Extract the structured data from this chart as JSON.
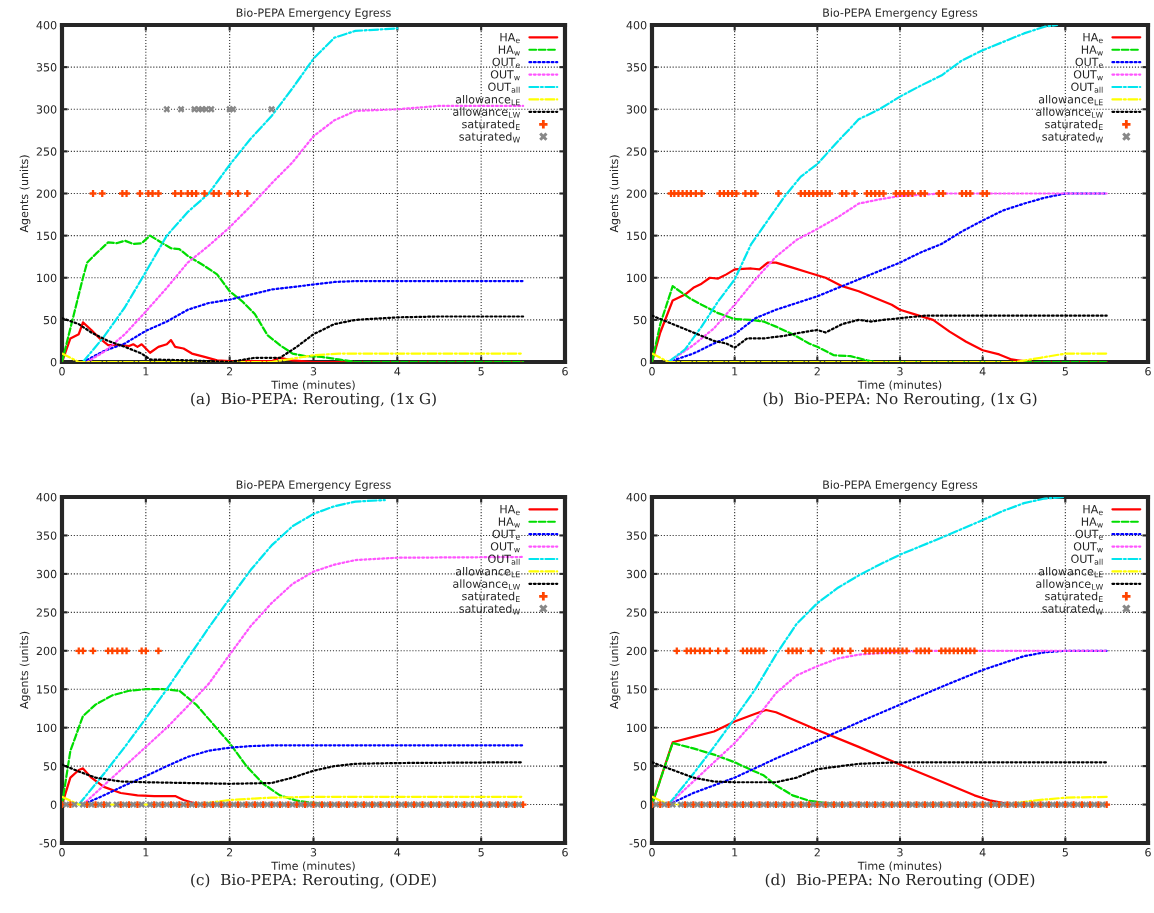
{
  "chart_data": [
    {
      "type": "line",
      "title": "Bio-PEPA Emergency Egress",
      "xlabel": "Time (minutes)",
      "ylabel": "Agents (units)",
      "xlim": [
        0,
        6
      ],
      "xticks": [
        0,
        1,
        2,
        3,
        4,
        5,
        6
      ],
      "ylim": [
        0,
        400
      ],
      "yticks": [
        0,
        50,
        100,
        150,
        200,
        250,
        300,
        350,
        400
      ],
      "grid": true,
      "legend": "top right",
      "annotations": [
        "(a)  Bio-PEPA: Rerouting, (1x G)"
      ],
      "series": [
        {
          "name": "HA$_{e}$",
          "color": "#ff0000",
          "line_style": "solid",
          "x": [
            0,
            0.1,
            0.2,
            0.25,
            0.35,
            0.45,
            0.55,
            0.7,
            0.8,
            0.85,
            0.9,
            0.95,
            1.05,
            1.15,
            1.25,
            1.3,
            1.35,
            1.45,
            1.55,
            1.7,
            1.85,
            2.0,
            2.5,
            2.6,
            2.75,
            3,
            5.5
          ],
          "values": [
            0,
            28,
            33,
            47,
            38,
            28,
            20,
            20,
            19,
            21,
            18,
            21,
            11,
            18,
            21,
            26,
            18,
            16,
            10,
            6,
            2,
            1,
            1,
            5,
            2,
            0,
            0
          ]
        },
        {
          "name": "HA$_{w}$",
          "color": "#00dd00",
          "line_style": "dashed",
          "x": [
            0,
            0.15,
            0.25,
            0.3,
            0.4,
            0.55,
            0.65,
            0.75,
            0.85,
            0.95,
            1.05,
            1.15,
            1.3,
            1.4,
            1.5,
            1.7,
            1.85,
            2.0,
            2.15,
            2.3,
            2.45,
            2.6,
            2.75,
            2.9,
            3.1,
            3.3,
            3.5,
            5.5
          ],
          "values": [
            0,
            60,
            100,
            118,
            128,
            142,
            141,
            144,
            140,
            141,
            150,
            144,
            135,
            134,
            126,
            114,
            104,
            84,
            72,
            57,
            32,
            20,
            10,
            7,
            6,
            3,
            0,
            0
          ]
        },
        {
          "name": "OUT$_{e}$",
          "color": "#0000ff",
          "line_style": "dotted",
          "x": [
            0.25,
            0.5,
            0.75,
            1.0,
            1.25,
            1.5,
            1.75,
            2.0,
            2.25,
            2.5,
            2.75,
            3.0,
            3.25,
            3.5,
            5.5
          ],
          "values": [
            0,
            13,
            22,
            37,
            48,
            62,
            70,
            74,
            80,
            86,
            89,
            92,
            95,
            96,
            96
          ]
        },
        {
          "name": "OUT$_{w}$",
          "color": "#ff55ff",
          "line_style": "dotted",
          "x": [
            0.3,
            0.5,
            0.75,
            1.0,
            1.25,
            1.5,
            1.75,
            2.0,
            2.25,
            2.5,
            2.75,
            3.0,
            3.25,
            3.5,
            4.0,
            4.5,
            5.5
          ],
          "values": [
            0,
            12,
            33,
            60,
            88,
            118,
            138,
            160,
            185,
            212,
            237,
            268,
            287,
            298,
            300,
            304,
            304
          ]
        },
        {
          "name": "OUT$_{all}$",
          "color": "#00e5ee",
          "line_style": "dashdot",
          "x": [
            0.25,
            0.5,
            0.75,
            1.0,
            1.25,
            1.5,
            1.75,
            2.0,
            2.25,
            2.5,
            2.75,
            3.0,
            3.25,
            3.5,
            4.0
          ],
          "values": [
            0,
            30,
            65,
            107,
            150,
            178,
            200,
            234,
            265,
            292,
            325,
            360,
            385,
            393,
            396
          ]
        },
        {
          "name": "allowance$_{LE}$",
          "color": "#ffff00",
          "line_style": "dashdot",
          "x": [
            0,
            0.2,
            2.5,
            3.0,
            3.3,
            5.5
          ],
          "values": [
            10,
            0,
            0,
            8,
            10,
            10
          ]
        },
        {
          "name": "allowance$_{LW}$",
          "color": "#000000",
          "line_style": "dotted",
          "x": [
            0,
            0.2,
            0.35,
            0.55,
            0.75,
            0.95,
            1.05,
            1.5,
            2.0,
            2.3,
            2.6,
            2.8,
            3.0,
            3.25,
            3.5,
            4.0,
            4.5,
            5.5
          ],
          "values": [
            52,
            45,
            35,
            25,
            18,
            10,
            3,
            2,
            0,
            5,
            5,
            18,
            33,
            45,
            50,
            53,
            54,
            54
          ]
        },
        {
          "name": "saturated$_{E}$",
          "type": "scatter",
          "marker": "plus",
          "color": "#ff4400",
          "x": [
            0.37,
            0.48,
            0.72,
            0.77,
            0.93,
            1.03,
            1.08,
            1.15,
            1.35,
            1.42,
            1.5,
            1.55,
            1.6,
            1.7,
            1.81,
            1.87,
            2.0,
            2.1,
            2.21
          ],
          "values": [
            200,
            200,
            200,
            200,
            200,
            200,
            200,
            200,
            200,
            200,
            200,
            200,
            200,
            200,
            200,
            200,
            200,
            200,
            200
          ]
        },
        {
          "name": "saturated$_{W}$",
          "type": "scatter",
          "marker": "cross",
          "color": "#888888",
          "x": [
            1.25,
            1.42,
            1.58,
            1.63,
            1.67,
            1.72,
            1.78,
            2.0,
            2.04,
            2.5
          ],
          "values": [
            300,
            300,
            300,
            300,
            300,
            300,
            300,
            300,
            300,
            300
          ]
        }
      ]
    },
    {
      "type": "line",
      "title": "Bio-PEPA Emergency Egress",
      "xlabel": "Time (minutes)",
      "ylabel": "Agents (units)",
      "xlim": [
        0,
        6
      ],
      "xticks": [
        0,
        1,
        2,
        3,
        4,
        5,
        6
      ],
      "ylim": [
        0,
        400
      ],
      "yticks": [
        0,
        50,
        100,
        150,
        200,
        250,
        300,
        350,
        400
      ],
      "grid": true,
      "legend": "top right",
      "annotations": [
        "(b)  Bio-PEPA: No Rerouting, (1x G)"
      ],
      "series": [
        {
          "name": "HA$_{e}$",
          "color": "#ff0000",
          "line_style": "solid",
          "x": [
            0,
            0.1,
            0.25,
            0.4,
            0.5,
            0.6,
            0.7,
            0.8,
            0.9,
            1.0,
            1.2,
            1.3,
            1.4,
            1.5,
            1.7,
            1.9,
            2.1,
            2.3,
            2.5,
            2.7,
            2.9,
            3.0,
            3.2,
            3.4,
            3.6,
            3.8,
            4.0,
            4.2,
            4.35,
            4.6,
            5.5
          ],
          "values": [
            0,
            35,
            73,
            80,
            88,
            93,
            100,
            99,
            104,
            110,
            111,
            110,
            118,
            118,
            112,
            106,
            100,
            90,
            84,
            76,
            68,
            62,
            56,
            50,
            36,
            24,
            14,
            9,
            3,
            0,
            0
          ]
        },
        {
          "name": "HA$_{w}$",
          "color": "#00dd00",
          "line_style": "dashed",
          "x": [
            0,
            0.1,
            0.25,
            0.45,
            0.6,
            0.8,
            1.0,
            1.2,
            1.35,
            1.5,
            1.7,
            1.9,
            2.0,
            2.2,
            2.4,
            2.6,
            2.7,
            5.5
          ],
          "values": [
            0,
            45,
            90,
            76,
            68,
            58,
            51,
            50,
            48,
            42,
            33,
            22,
            18,
            8,
            7,
            2,
            0,
            0
          ]
        },
        {
          "name": "OUT$_{e}$",
          "color": "#0000ff",
          "line_style": "dotted",
          "x": [
            0.2,
            0.5,
            0.75,
            1.0,
            1.25,
            1.5,
            1.75,
            2.0,
            2.25,
            2.5,
            2.75,
            3.0,
            3.25,
            3.5,
            3.75,
            4.0,
            4.25,
            4.5,
            4.75,
            5.0,
            5.5
          ],
          "values": [
            0,
            10,
            22,
            33,
            52,
            62,
            70,
            78,
            88,
            98,
            108,
            118,
            130,
            140,
            155,
            168,
            180,
            188,
            195,
            200,
            200
          ]
        },
        {
          "name": "OUT$_{w}$",
          "color": "#ff55ff",
          "line_style": "dotted",
          "x": [
            0.2,
            0.5,
            0.75,
            1.0,
            1.25,
            1.5,
            1.75,
            2.0,
            2.25,
            2.5,
            2.75,
            3.0,
            3.5,
            5.5
          ],
          "values": [
            0,
            20,
            40,
            68,
            98,
            125,
            145,
            158,
            172,
            188,
            193,
            197,
            200,
            200
          ]
        },
        {
          "name": "OUT$_{all}$",
          "color": "#00e5ee",
          "line_style": "dashdot",
          "x": [
            0.2,
            0.4,
            0.6,
            0.8,
            1.0,
            1.2,
            1.4,
            1.6,
            1.8,
            2.0,
            2.25,
            2.5,
            2.75,
            3.0,
            3.25,
            3.5,
            3.75,
            4.0,
            4.25,
            4.5,
            4.75,
            4.9
          ],
          "values": [
            0,
            15,
            42,
            72,
            98,
            140,
            168,
            196,
            220,
            235,
            262,
            288,
            300,
            315,
            328,
            340,
            358,
            370,
            380,
            390,
            398,
            400
          ]
        },
        {
          "name": "allowance$_{LE}$",
          "color": "#ffff00",
          "line_style": "dashdot",
          "x": [
            0,
            0.2,
            4.4,
            4.7,
            5.0,
            5.5
          ],
          "values": [
            10,
            0,
            0,
            5,
            10,
            10
          ]
        },
        {
          "name": "allowance$_{LW}$",
          "color": "#000000",
          "line_style": "dotted",
          "x": [
            0,
            0.25,
            0.5,
            0.75,
            0.9,
            1.0,
            1.15,
            1.35,
            1.6,
            1.8,
            2.0,
            2.1,
            2.3,
            2.5,
            2.65,
            2.8,
            3.0,
            3.3,
            5.5
          ],
          "values": [
            55,
            45,
            35,
            25,
            22,
            17,
            28,
            28,
            31,
            35,
            38,
            35,
            45,
            50,
            48,
            50,
            52,
            55,
            55
          ]
        },
        {
          "name": "saturated$_{E}$",
          "type": "scatter",
          "marker": "plus",
          "color": "#ff4400",
          "x": [
            0.23,
            0.27,
            0.32,
            0.37,
            0.42,
            0.47,
            0.53,
            0.6,
            0.82,
            0.87,
            0.92,
            0.97,
            1.02,
            1.13,
            1.2,
            1.25,
            1.53,
            1.8,
            1.85,
            1.9,
            1.95,
            2.0,
            2.05,
            2.1,
            2.15,
            2.3,
            2.35,
            2.45,
            2.6,
            2.65,
            2.7,
            2.75,
            2.8,
            2.95,
            3.0,
            3.05,
            3.1,
            3.15,
            3.25,
            3.3,
            3.47,
            3.52,
            3.75,
            3.8,
            3.85,
            4.0,
            4.05
          ],
          "values": [
            200,
            200,
            200,
            200,
            200,
            200,
            200,
            200,
            200,
            200,
            200,
            200,
            200,
            200,
            200,
            200,
            200,
            200,
            200,
            200,
            200,
            200,
            200,
            200,
            200,
            200,
            200,
            200,
            200,
            200,
            200,
            200,
            200,
            200,
            200,
            200,
            200,
            200,
            200,
            200,
            200,
            200,
            200,
            200,
            200,
            200,
            200
          ]
        },
        {
          "name": "saturated$_{W}$",
          "type": "scatter",
          "marker": "cross",
          "color": "#888888"
        }
      ]
    },
    {
      "type": "line",
      "title": "Bio-PEPA Emergency Egress",
      "xlabel": "Time (minutes)",
      "ylabel": "Agents (units)",
      "xlim": [
        0,
        6
      ],
      "xticks": [
        0,
        1,
        2,
        3,
        4,
        5,
        6
      ],
      "ylim": [
        -50,
        400
      ],
      "yticks": [
        -50,
        0,
        50,
        100,
        150,
        200,
        250,
        300,
        350,
        400
      ],
      "grid": true,
      "legend": "top right",
      "annotations": [
        "(c)  Bio-PEPA: Rerouting, (ODE)"
      ],
      "series": [
        {
          "name": "HA$_{e}$",
          "color": "#ff0000",
          "line_style": "solid",
          "x": [
            0,
            0.1,
            0.2,
            0.25,
            0.35,
            0.5,
            0.7,
            0.9,
            1.1,
            1.35,
            1.45,
            1.6,
            1.8,
            5.5
          ],
          "values": [
            0,
            35,
            45,
            47,
            35,
            23,
            15,
            12,
            11,
            11,
            6,
            1,
            0,
            0
          ]
        },
        {
          "name": "HA$_{w}$",
          "color": "#00dd00",
          "line_style": "dashed",
          "x": [
            0,
            0.1,
            0.25,
            0.4,
            0.6,
            0.8,
            1.0,
            1.2,
            1.4,
            1.6,
            1.8,
            2.0,
            2.2,
            2.4,
            2.6,
            2.8,
            3.0,
            3.2,
            5.5
          ],
          "values": [
            0,
            70,
            115,
            130,
            142,
            148,
            150,
            150,
            148,
            130,
            105,
            80,
            50,
            27,
            12,
            5,
            2,
            0,
            0
          ]
        },
        {
          "name": "OUT$_{e}$",
          "color": "#0000ff",
          "line_style": "dotted",
          "x": [
            0.25,
            0.5,
            0.75,
            1.0,
            1.25,
            1.5,
            1.75,
            2.0,
            2.25,
            2.5,
            3.0,
            5.5
          ],
          "values": [
            0,
            12,
            25,
            37,
            50,
            62,
            70,
            74,
            76,
            77,
            77,
            77
          ]
        },
        {
          "name": "OUT$_{w}$",
          "color": "#ff55ff",
          "line_style": "dotted",
          "x": [
            0.25,
            0.5,
            0.75,
            1.0,
            1.25,
            1.5,
            1.75,
            2.0,
            2.25,
            2.5,
            2.75,
            3.0,
            3.25,
            3.5,
            4.0,
            5.5
          ],
          "values": [
            0,
            25,
            50,
            75,
            100,
            128,
            157,
            195,
            232,
            262,
            287,
            303,
            312,
            318,
            321,
            322
          ]
        },
        {
          "name": "OUT$_{all}$",
          "color": "#00e5ee",
          "line_style": "dashdot",
          "x": [
            0.2,
            0.5,
            0.75,
            1.0,
            1.25,
            1.5,
            1.75,
            2.0,
            2.25,
            2.5,
            2.75,
            3.0,
            3.25,
            3.5,
            3.85
          ],
          "values": [
            0,
            40,
            75,
            112,
            150,
            190,
            230,
            268,
            305,
            337,
            362,
            378,
            388,
            394,
            396
          ]
        },
        {
          "name": "allowance$_{LE}$",
          "color": "#ffff00",
          "line_style": "dashdot",
          "x": [
            0,
            0.2,
            1.6,
            2.0,
            2.5,
            3.0,
            5.5
          ],
          "values": [
            10,
            0,
            0,
            6,
            9,
            10,
            10
          ]
        },
        {
          "name": "allowance$_{LW}$",
          "color": "#000000",
          "line_style": "dotted",
          "x": [
            0,
            0.2,
            0.4,
            0.7,
            1.0,
            1.5,
            2.0,
            2.5,
            2.75,
            3.0,
            3.25,
            3.5,
            4.0,
            5.5
          ],
          "values": [
            52,
            43,
            35,
            30,
            29,
            28,
            27,
            28,
            35,
            44,
            50,
            53,
            54,
            55
          ]
        },
        {
          "name": "saturated$_{E}$",
          "type": "scatter",
          "marker": "plus",
          "color": "#ff4400",
          "x": [
            0.2,
            0.25,
            0.37,
            0.55,
            0.6,
            0.66,
            0.72,
            0.77,
            0.95,
            1.0,
            1.15,
            0,
            0.1,
            0.3,
            0.4,
            0.5,
            0.7,
            0.8,
            0.9,
            1.1,
            1.2,
            1.3,
            1.4,
            1.5,
            1.6,
            1.7,
            1.8,
            1.9,
            2.0,
            2.1,
            2.2,
            2.3,
            2.4,
            2.5,
            2.6,
            2.7,
            2.8,
            2.9,
            3.0,
            3.1,
            3.2,
            3.3,
            3.4,
            3.5,
            3.6,
            3.7,
            3.8,
            3.9,
            4.0,
            4.1,
            4.2,
            4.3,
            4.4,
            4.5,
            4.6,
            4.7,
            4.8,
            4.9,
            5.0,
            5.1,
            5.2,
            5.3,
            5.4,
            5.5
          ],
          "values": [
            200,
            200,
            200,
            200,
            200,
            200,
            200,
            200,
            200,
            200,
            200,
            0,
            0,
            0,
            0,
            0,
            0,
            0,
            0,
            0,
            0,
            0,
            0,
            0,
            0,
            0,
            0,
            0,
            0,
            0,
            0,
            0,
            0,
            0,
            0,
            0,
            0,
            0,
            0,
            0,
            0,
            0,
            0,
            0,
            0,
            0,
            0,
            0,
            0,
            0,
            0,
            0,
            0,
            0,
            0,
            0,
            0,
            0,
            0,
            0,
            0,
            0,
            0,
            0
          ]
        },
        {
          "name": "saturated$_{W}$",
          "type": "scatter",
          "marker": "cross",
          "color": "#888888",
          "x": [
            0.05,
            0.15,
            0.25,
            0.35,
            0.45,
            0.55,
            0.65,
            0.75,
            0.85,
            0.95,
            1.05,
            1.15,
            1.25,
            1.35,
            1.45,
            1.55,
            1.65,
            1.75,
            1.85,
            1.95,
            2.05,
            2.15,
            2.25,
            2.35,
            2.45,
            2.55,
            2.65,
            2.75,
            2.85,
            2.95,
            3.05,
            3.15,
            3.25,
            3.35,
            3.45,
            3.55,
            3.65,
            3.75,
            3.85,
            3.95,
            4.05,
            4.15,
            4.25,
            4.35,
            4.45,
            4.55,
            4.65,
            4.75,
            4.85,
            4.95,
            5.05,
            5.15,
            5.25,
            5.35,
            5.45
          ],
          "values": [
            0,
            0,
            0,
            0,
            0,
            0,
            0,
            0,
            0,
            0,
            0,
            0,
            0,
            0,
            0,
            0,
            0,
            0,
            0,
            0,
            0,
            0,
            0,
            0,
            0,
            0,
            0,
            0,
            0,
            0,
            0,
            0,
            0,
            0,
            0,
            0,
            0,
            0,
            0,
            0,
            0,
            0,
            0,
            0,
            0,
            0,
            0,
            0,
            0,
            0,
            0,
            0,
            0,
            0,
            0
          ]
        }
      ]
    },
    {
      "type": "line",
      "title": "Bio-PEPA Emergency Egress",
      "xlabel": "Time (minutes)",
      "ylabel": "Agents (units)",
      "xlim": [
        0,
        6
      ],
      "xticks": [
        0,
        1,
        2,
        3,
        4,
        5,
        6
      ],
      "ylim": [
        -50,
        400
      ],
      "yticks": [
        -50,
        0,
        50,
        100,
        150,
        200,
        250,
        300,
        350,
        400
      ],
      "grid": true,
      "legend": "top right",
      "annotations": [
        "(d)  Bio-PEPA: No Rerouting (ODE)"
      ],
      "series": [
        {
          "name": "HA$_{e}$",
          "color": "#ff0000",
          "line_style": "solid",
          "x": [
            0,
            0.25,
            0.5,
            0.75,
            1.0,
            1.25,
            1.38,
            1.5,
            2.0,
            2.5,
            3.0,
            3.5,
            3.9,
            4.1,
            4.3,
            4.5,
            5.5
          ],
          "values": [
            0,
            81,
            88,
            95,
            108,
            118,
            123,
            120,
            97,
            75,
            52,
            30,
            12,
            5,
            1,
            0,
            0
          ]
        },
        {
          "name": "HA$_{w}$",
          "color": "#00dd00",
          "line_style": "dashed",
          "x": [
            0,
            0.25,
            0.5,
            0.75,
            1.0,
            1.2,
            1.35,
            1.5,
            1.7,
            1.9,
            2.1,
            2.3,
            5.5
          ],
          "values": [
            0,
            80,
            73,
            65,
            55,
            45,
            38,
            25,
            12,
            5,
            2,
            0,
            0
          ]
        },
        {
          "name": "OUT$_{e}$",
          "color": "#0000ff",
          "line_style": "dotted",
          "x": [
            0.2,
            0.5,
            1.0,
            1.5,
            2.0,
            2.5,
            3.0,
            3.5,
            4.0,
            4.5,
            4.75,
            5.0,
            5.5
          ],
          "values": [
            0,
            15,
            35,
            60,
            83,
            107,
            130,
            153,
            175,
            193,
            198,
            200,
            200
          ]
        },
        {
          "name": "OUT$_{w}$",
          "color": "#ff55ff",
          "line_style": "dotted",
          "x": [
            0.2,
            0.5,
            0.75,
            1.0,
            1.25,
            1.5,
            1.75,
            2.0,
            2.25,
            2.5,
            3.0,
            3.5,
            5.5
          ],
          "values": [
            0,
            30,
            55,
            80,
            110,
            145,
            168,
            180,
            190,
            195,
            199,
            200,
            200
          ]
        },
        {
          "name": "OUT$_{all}$",
          "color": "#00e5ee",
          "line_style": "dashdot",
          "x": [
            0.2,
            0.5,
            0.75,
            1.0,
            1.25,
            1.5,
            1.75,
            2.0,
            2.25,
            2.5,
            2.75,
            3.0,
            3.5,
            4.0,
            4.25,
            4.5,
            4.75,
            5.0
          ],
          "values": [
            0,
            40,
            75,
            112,
            150,
            195,
            235,
            262,
            282,
            298,
            312,
            325,
            347,
            370,
            382,
            392,
            398,
            400
          ]
        },
        {
          "name": "allowance$_{LE}$",
          "color": "#ffff00",
          "line_style": "dashdot",
          "x": [
            0,
            0.2,
            4.3,
            4.6,
            5.0,
            5.5
          ],
          "values": [
            10,
            0,
            0,
            5,
            9,
            10
          ]
        },
        {
          "name": "allowance$_{LW}$",
          "color": "#000000",
          "line_style": "dotted",
          "x": [
            0,
            0.25,
            0.5,
            0.75,
            1.0,
            1.5,
            1.75,
            2.0,
            2.5,
            3.0,
            5.5
          ],
          "values": [
            55,
            45,
            35,
            30,
            29,
            29,
            35,
            46,
            53,
            55,
            55
          ]
        },
        {
          "name": "saturated$_{E}$",
          "type": "scatter",
          "marker": "plus",
          "color": "#ff4400",
          "x": [
            0.3,
            0.42,
            0.47,
            0.52,
            0.58,
            0.63,
            0.7,
            0.8,
            0.9,
            1.1,
            1.15,
            1.2,
            1.25,
            1.3,
            1.35,
            1.65,
            1.7,
            1.75,
            1.8,
            1.92,
            2.05,
            2.2,
            2.25,
            2.3,
            2.4,
            2.58,
            2.63,
            2.68,
            2.73,
            2.78,
            2.83,
            2.88,
            2.93,
            2.98,
            3.03,
            3.08,
            3.2,
            3.25,
            3.3,
            3.35,
            3.5,
            3.55,
            3.6,
            3.65,
            3.7,
            3.75,
            3.8,
            3.85,
            3.9,
            0,
            0.1,
            0.2,
            0.4,
            0.5,
            0.6,
            0.7,
            0.8,
            0.9,
            1.0,
            1.1,
            1.2,
            1.3,
            1.4,
            1.5,
            1.6,
            1.7,
            1.8,
            1.9,
            2.0,
            2.1,
            2.2,
            2.3,
            2.4,
            2.5,
            2.6,
            2.7,
            2.8,
            2.9,
            3.0,
            3.1,
            3.2,
            3.3,
            3.4,
            3.5,
            3.6,
            3.7,
            3.8,
            3.9,
            4.0,
            4.1,
            4.2,
            4.3,
            4.4,
            4.5,
            4.6,
            4.7,
            4.8,
            4.9,
            5.0,
            5.1,
            5.2,
            5.3,
            5.4,
            5.5
          ],
          "values": [
            200,
            200,
            200,
            200,
            200,
            200,
            200,
            200,
            200,
            200,
            200,
            200,
            200,
            200,
            200,
            200,
            200,
            200,
            200,
            200,
            200,
            200,
            200,
            200,
            200,
            200,
            200,
            200,
            200,
            200,
            200,
            200,
            200,
            200,
            200,
            200,
            200,
            200,
            200,
            200,
            200,
            200,
            200,
            200,
            200,
            200,
            200,
            200,
            200,
            0,
            0,
            0,
            0,
            0,
            0,
            0,
            0,
            0,
            0,
            0,
            0,
            0,
            0,
            0,
            0,
            0,
            0,
            0,
            0,
            0,
            0,
            0,
            0,
            0,
            0,
            0,
            0,
            0,
            0,
            0,
            0,
            0,
            0,
            0,
            0,
            0,
            0,
            0,
            0,
            0,
            0,
            0,
            0,
            0,
            0,
            0,
            0,
            0,
            0,
            0,
            0,
            0,
            0,
            0
          ]
        },
        {
          "name": "saturated$_{W}$",
          "type": "scatter",
          "marker": "cross",
          "color": "#888888",
          "x": [
            0.05,
            0.15,
            0.25,
            0.35,
            0.45,
            0.55,
            0.65,
            0.75,
            0.85,
            0.95,
            1.05,
            1.15,
            1.25,
            1.35,
            1.45,
            1.55,
            1.65,
            1.75,
            1.85,
            1.95,
            2.05,
            2.15,
            2.25,
            2.35,
            2.45,
            2.55,
            2.65,
            2.75,
            2.85,
            2.95,
            3.05,
            3.15,
            3.25,
            3.35,
            3.45,
            3.55,
            3.65,
            3.75,
            3.85,
            3.95,
            4.05,
            4.15,
            4.25,
            4.35,
            4.45,
            4.55,
            4.65,
            4.75,
            4.85,
            4.95,
            5.05,
            5.15,
            5.25,
            5.35,
            5.45
          ],
          "values": [
            0,
            0,
            0,
            0,
            0,
            0,
            0,
            0,
            0,
            0,
            0,
            0,
            0,
            0,
            0,
            0,
            0,
            0,
            0,
            0,
            0,
            0,
            0,
            0,
            0,
            0,
            0,
            0,
            0,
            0,
            0,
            0,
            0,
            0,
            0,
            0,
            0,
            0,
            0,
            0,
            0,
            0,
            0,
            0,
            0,
            0,
            0,
            0,
            0,
            0,
            0,
            0,
            0,
            0,
            0
          ]
        }
      ]
    }
  ]
}
